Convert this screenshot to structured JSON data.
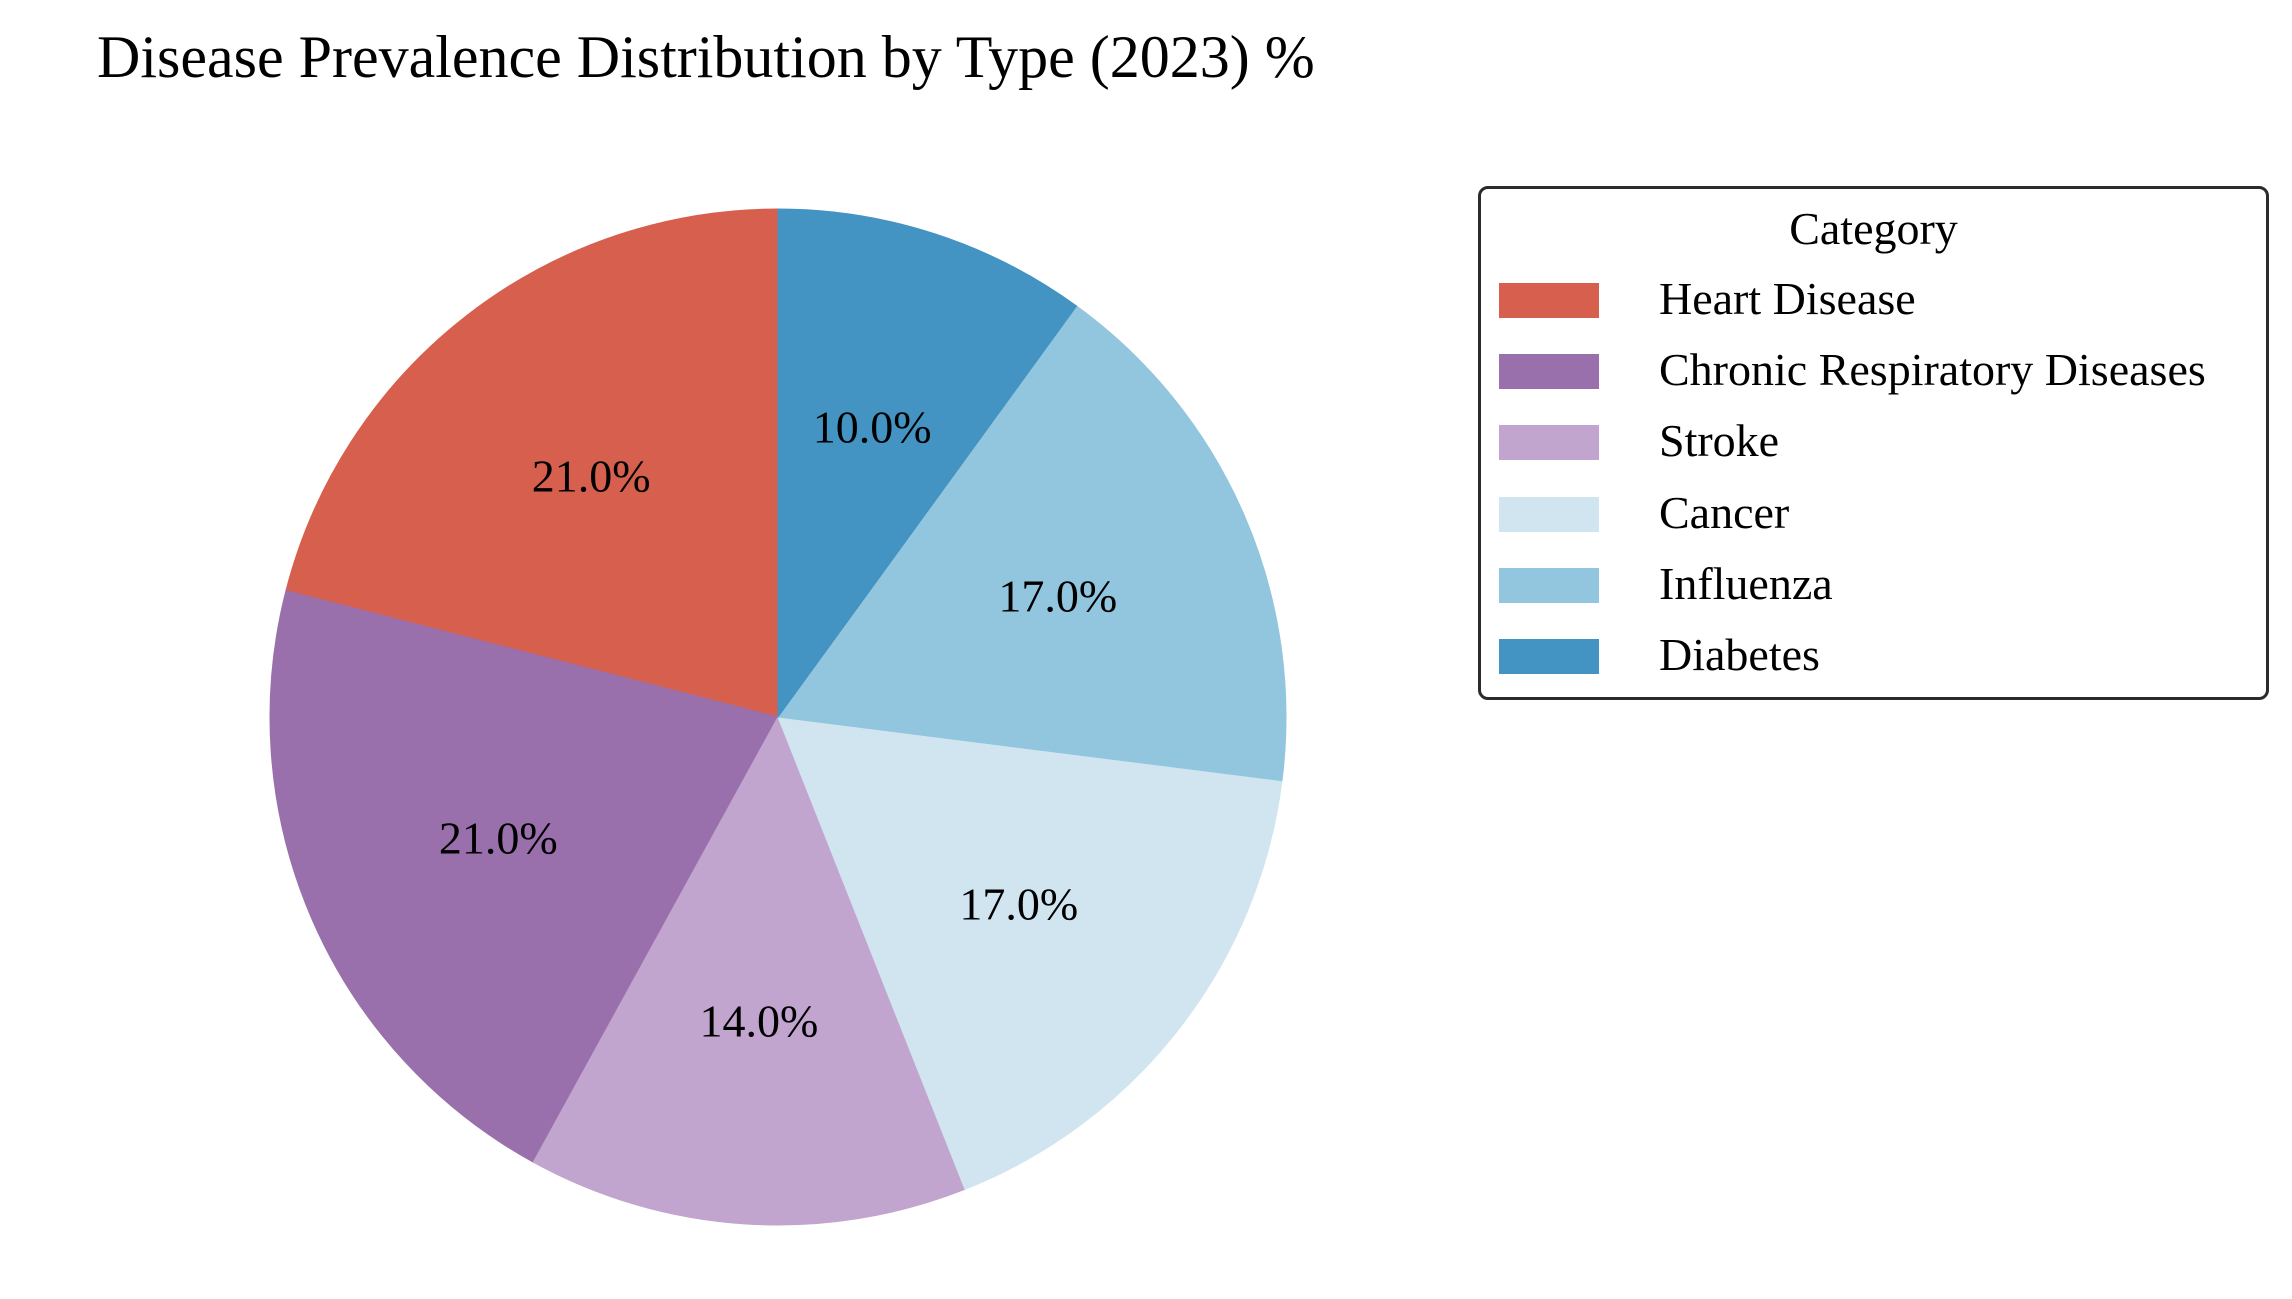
{
  "chart_data": {
    "type": "pie",
    "title": "Disease Prevalence Distribution by Type (2023) %",
    "legend_title": "Category",
    "legend_position": "right",
    "slices": [
      {
        "label": "Heart Disease",
        "value": 21.0,
        "display": "21.0%",
        "color": "#d75f4d"
      },
      {
        "label": "Chronic Respiratory Diseases",
        "value": 21.0,
        "display": "21.0%",
        "color": "#9970ab"
      },
      {
        "label": "Stroke",
        "value": 14.0,
        "display": "14.0%",
        "color": "#c2a5cf"
      },
      {
        "label": "Cancer",
        "value": 17.0,
        "display": "17.0%",
        "color": "#d1e5f0"
      },
      {
        "label": "Influenza",
        "value": 17.0,
        "display": "17.0%",
        "color": "#92c5de"
      },
      {
        "label": "Diabetes",
        "value": 10.0,
        "display": "10.0%",
        "color": "#4393c3"
      }
    ],
    "start_angle_deg": 90,
    "direction": "counterclockwise"
  }
}
